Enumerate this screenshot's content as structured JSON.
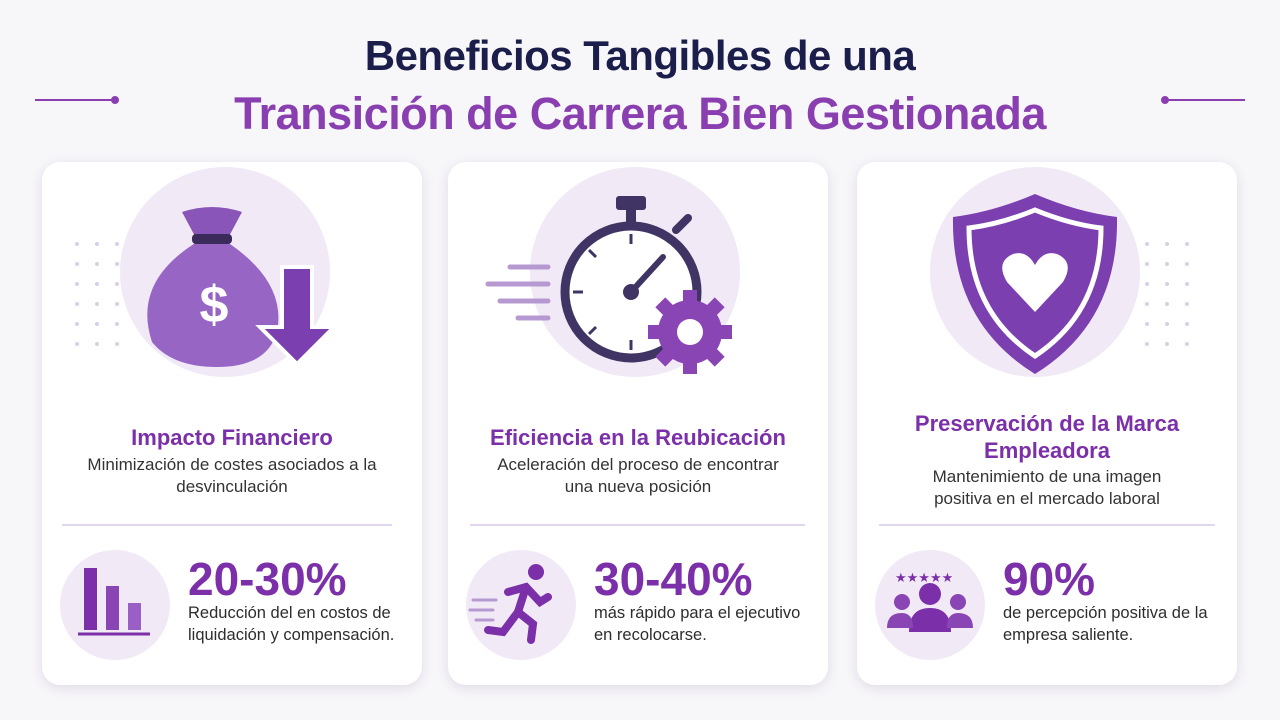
{
  "header": {
    "title_line1": "Beneficios Tangibles de una",
    "title_line2": "Transición de Carrera Bien Gestionada"
  },
  "cards": [
    {
      "title": "Impacto Financiero",
      "description": "Minimización de costes asociados a la desvinculación",
      "stat": "20-30%",
      "stat_text": "Reducción del en costos de liquidación y compensación."
    },
    {
      "title": "Eficiencia en la Reubicación",
      "description": "Aceleración del proceso de encontrar una nueva posición",
      "stat": "30-40%",
      "stat_text": "más rápido para el ejecutivo en recolocarse."
    },
    {
      "title": "Preservación de la Marca Empleadora",
      "description": "Mantenimiento de una imagen positiva en el mercado laboral",
      "stat": "90%",
      "stat_text": "de percepción positiva de la empresa saliente."
    }
  ]
}
